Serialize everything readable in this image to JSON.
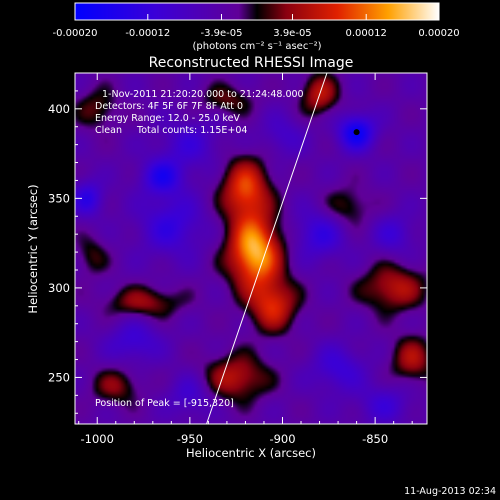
{
  "chart_data": {
    "type": "heatmap",
    "title": "Reconstructed RHESSI Image",
    "xlabel": "Heliocentric X (arcsec)",
    "ylabel": "Heliocentric Y (arcsec)",
    "xlim": [
      -1012,
      -822
    ],
    "ylim": [
      224,
      420
    ],
    "x_ticks": [
      -1000,
      -950,
      -900,
      -850
    ],
    "y_ticks": [
      250,
      300,
      350,
      400
    ],
    "colorbar": {
      "range": [
        -0.0002,
        0.0002
      ],
      "tick_values": [
        -0.0002,
        -0.00012,
        -3.9e-05,
        3.9e-05,
        0.00012,
        0.0002
      ],
      "tick_labels": [
        "-0.00020",
        "-0.00012",
        "-3.9e-05",
        "3.9e-05",
        "0.00012",
        "0.00020"
      ],
      "units_label": "(photons cm⁻² s⁻¹ asec⁻²)"
    },
    "annotations": [
      "1-Nov-2011 21:20:20.000 to 21:24:48.000",
      "Detectors: 4F 5F 6F 7F 8F Att 0",
      "Energy Range: 12.0 - 25.0 keV",
      "Clean     Total counts: 1.15E+04"
    ],
    "peak_text": "Position of Peak = [-915,320]",
    "peak": {
      "x": -915,
      "y": 320
    },
    "limb_line": [
      [
        -941,
        224
      ],
      [
        -876,
        420
      ]
    ],
    "marker": {
      "x": -860,
      "y": 387
    },
    "sources": [
      {
        "x": -915,
        "y": 320,
        "amp": 0.0002,
        "sx": 10,
        "sy": 14
      },
      {
        "x": -920,
        "y": 355,
        "amp": 0.00014,
        "sx": 9,
        "sy": 12
      },
      {
        "x": -905,
        "y": 290,
        "amp": 0.00012,
        "sx": 9,
        "sy": 10
      },
      {
        "x": -925,
        "y": 250,
        "amp": 0.0001,
        "sx": 12,
        "sy": 9
      },
      {
        "x": -880,
        "y": 408,
        "amp": 0.0001,
        "sx": 7,
        "sy": 8
      },
      {
        "x": -840,
        "y": 300,
        "amp": 0.0001,
        "sx": 12,
        "sy": 9
      },
      {
        "x": -830,
        "y": 260,
        "amp": 9e-05,
        "sx": 8,
        "sy": 9
      },
      {
        "x": -975,
        "y": 292,
        "amp": 8e-05,
        "sx": 14,
        "sy": 6
      },
      {
        "x": -990,
        "y": 245,
        "amp": 7e-05,
        "sx": 9,
        "sy": 7
      },
      {
        "x": -930,
        "y": 405,
        "amp": 6e-05,
        "sx": 10,
        "sy": 6
      },
      {
        "x": -1000,
        "y": 400,
        "amp": 6e-05,
        "sx": 8,
        "sy": 8
      },
      {
        "x": -865,
        "y": 345,
        "amp": 6e-05,
        "sx": 9,
        "sy": 8
      },
      {
        "x": -1003,
        "y": 318,
        "amp": 5e-05,
        "sx": 6,
        "sy": 8
      },
      {
        "x": -960,
        "y": 335,
        "amp": -8e-05,
        "sx": 12,
        "sy": 12
      },
      {
        "x": -965,
        "y": 362,
        "amp": -0.0001,
        "sx": 8,
        "sy": 7
      },
      {
        "x": -860,
        "y": 387,
        "amp": -0.00014,
        "sx": 7,
        "sy": 7
      },
      {
        "x": -880,
        "y": 330,
        "amp": -8e-05,
        "sx": 10,
        "sy": 10
      },
      {
        "x": -980,
        "y": 270,
        "amp": -7e-05,
        "sx": 10,
        "sy": 8
      },
      {
        "x": -950,
        "y": 380,
        "amp": -6e-05,
        "sx": 12,
        "sy": 10
      },
      {
        "x": -845,
        "y": 235,
        "amp": -6e-05,
        "sx": 10,
        "sy": 8
      },
      {
        "x": -1005,
        "y": 350,
        "amp": -9e-05,
        "sx": 6,
        "sy": 7
      },
      {
        "x": -870,
        "y": 255,
        "amp": -7e-05,
        "sx": 10,
        "sy": 9
      },
      {
        "x": -840,
        "y": 330,
        "amp": -6e-05,
        "sx": 8,
        "sy": 8
      },
      {
        "x": -900,
        "y": 385,
        "amp": -5e-05,
        "sx": 8,
        "sy": 8
      },
      {
        "x": -950,
        "y": 240,
        "amp": -6e-05,
        "sx": 8,
        "sy": 8
      }
    ]
  },
  "footer_date": "11-Aug-2013 02:34"
}
